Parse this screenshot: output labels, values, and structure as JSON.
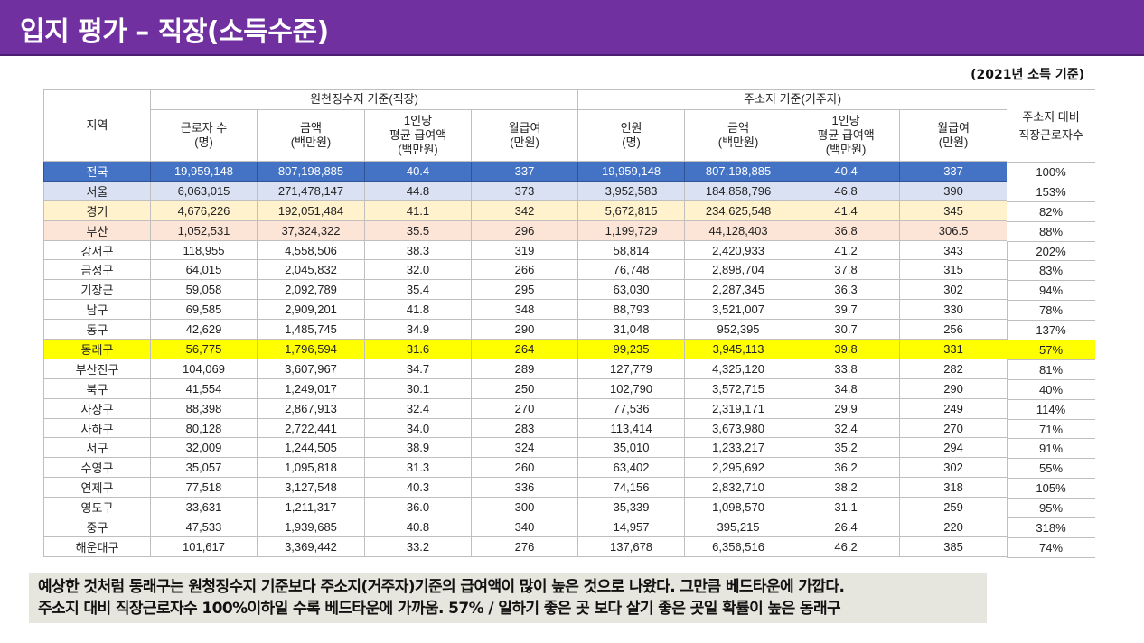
{
  "header": {
    "title": "입지 평가 – 직장(소득수준)"
  },
  "basis_note": "(2021년 소득 기준)",
  "table": {
    "region_header": "지역",
    "group_withholding": "원천징수지 기준(직장)",
    "group_residence": "주소지 기준(거주자)",
    "ratio_header": "주소지 대비\n직장근로자수",
    "withholding_columns": [
      "근로자 수\n(명)",
      "금액\n(백만원)",
      "1인당\n평균 급여액\n(백만원)",
      "월급여\n(만원)"
    ],
    "residence_columns": [
      "인원\n(명)",
      "금액\n(백만원)",
      "1인당\n평균 급여액\n(백만원)",
      "월급여\n(만원)"
    ],
    "rows": [
      {
        "style": "national",
        "region": "전국",
        "w_workers": "19,959,148",
        "w_amount": "807,198,885",
        "w_avg": "40.4",
        "w_month": "337",
        "r_people": "19,959,148",
        "r_amount": "807,198,885",
        "r_avg": "40.4",
        "r_month": "337",
        "ratio": "100%"
      },
      {
        "style": "seoul",
        "region": "서울",
        "w_workers": "6,063,015",
        "w_amount": "271,478,147",
        "w_avg": "44.8",
        "w_month": "373",
        "r_people": "3,952,583",
        "r_amount": "184,858,796",
        "r_avg": "46.8",
        "r_month": "390",
        "ratio": "153%"
      },
      {
        "style": "gyeonggi",
        "region": "경기",
        "w_workers": "4,676,226",
        "w_amount": "192,051,484",
        "w_avg": "41.1",
        "w_month": "342",
        "r_people": "5,672,815",
        "r_amount": "234,625,548",
        "r_avg": "41.4",
        "r_month": "345",
        "ratio": "82%"
      },
      {
        "style": "busan",
        "region": "부산",
        "w_workers": "1,052,531",
        "w_amount": "37,324,322",
        "w_avg": "35.5",
        "w_month": "296",
        "r_people": "1,199,729",
        "r_amount": "44,128,403",
        "r_avg": "36.8",
        "r_month": "306.5",
        "ratio": "88%"
      },
      {
        "style": "plain",
        "region": "강서구",
        "w_workers": "118,955",
        "w_amount": "4,558,506",
        "w_avg": "38.3",
        "w_month": "319",
        "r_people": "58,814",
        "r_amount": "2,420,933",
        "r_avg": "41.2",
        "r_month": "343",
        "ratio": "202%"
      },
      {
        "style": "plain",
        "region": "금정구",
        "w_workers": "64,015",
        "w_amount": "2,045,832",
        "w_avg": "32.0",
        "w_month": "266",
        "r_people": "76,748",
        "r_amount": "2,898,704",
        "r_avg": "37.8",
        "r_month": "315",
        "ratio": "83%"
      },
      {
        "style": "plain",
        "region": "기장군",
        "w_workers": "59,058",
        "w_amount": "2,092,789",
        "w_avg": "35.4",
        "w_month": "295",
        "r_people": "63,030",
        "r_amount": "2,287,345",
        "r_avg": "36.3",
        "r_month": "302",
        "ratio": "94%"
      },
      {
        "style": "plain",
        "region": "남구",
        "w_workers": "69,585",
        "w_amount": "2,909,201",
        "w_avg": "41.8",
        "w_month": "348",
        "r_people": "88,793",
        "r_amount": "3,521,007",
        "r_avg": "39.7",
        "r_month": "330",
        "ratio": "78%"
      },
      {
        "style": "plain",
        "region": "동구",
        "w_workers": "42,629",
        "w_amount": "1,485,745",
        "w_avg": "34.9",
        "w_month": "290",
        "r_people": "31,048",
        "r_amount": "952,395",
        "r_avg": "30.7",
        "r_month": "256",
        "ratio": "137%"
      },
      {
        "style": "highlight",
        "region": "동래구",
        "w_workers": "56,775",
        "w_amount": "1,796,594",
        "w_avg": "31.6",
        "w_month": "264",
        "r_people": "99,235",
        "r_amount": "3,945,113",
        "r_avg": "39.8",
        "r_month": "331",
        "ratio": "57%"
      },
      {
        "style": "plain",
        "region": "부산진구",
        "w_workers": "104,069",
        "w_amount": "3,607,967",
        "w_avg": "34.7",
        "w_month": "289",
        "r_people": "127,779",
        "r_amount": "4,325,120",
        "r_avg": "33.8",
        "r_month": "282",
        "ratio": "81%"
      },
      {
        "style": "plain",
        "region": "북구",
        "w_workers": "41,554",
        "w_amount": "1,249,017",
        "w_avg": "30.1",
        "w_month": "250",
        "r_people": "102,790",
        "r_amount": "3,572,715",
        "r_avg": "34.8",
        "r_month": "290",
        "ratio": "40%"
      },
      {
        "style": "plain",
        "region": "사상구",
        "w_workers": "88,398",
        "w_amount": "2,867,913",
        "w_avg": "32.4",
        "w_month": "270",
        "r_people": "77,536",
        "r_amount": "2,319,171",
        "r_avg": "29.9",
        "r_month": "249",
        "ratio": "114%"
      },
      {
        "style": "plain",
        "region": "사하구",
        "w_workers": "80,128",
        "w_amount": "2,722,441",
        "w_avg": "34.0",
        "w_month": "283",
        "r_people": "113,414",
        "r_amount": "3,673,980",
        "r_avg": "32.4",
        "r_month": "270",
        "ratio": "71%"
      },
      {
        "style": "plain",
        "region": "서구",
        "w_workers": "32,009",
        "w_amount": "1,244,505",
        "w_avg": "38.9",
        "w_month": "324",
        "r_people": "35,010",
        "r_amount": "1,233,217",
        "r_avg": "35.2",
        "r_month": "294",
        "ratio": "91%"
      },
      {
        "style": "plain",
        "region": "수영구",
        "w_workers": "35,057",
        "w_amount": "1,095,818",
        "w_avg": "31.3",
        "w_month": "260",
        "r_people": "63,402",
        "r_amount": "2,295,692",
        "r_avg": "36.2",
        "r_month": "302",
        "ratio": "55%"
      },
      {
        "style": "plain",
        "region": "연제구",
        "w_workers": "77,518",
        "w_amount": "3,127,548",
        "w_avg": "40.3",
        "w_month": "336",
        "r_people": "74,156",
        "r_amount": "2,832,710",
        "r_avg": "38.2",
        "r_month": "318",
        "ratio": "105%"
      },
      {
        "style": "plain",
        "region": "영도구",
        "w_workers": "33,631",
        "w_amount": "1,211,317",
        "w_avg": "36.0",
        "w_month": "300",
        "r_people": "35,339",
        "r_amount": "1,098,570",
        "r_avg": "31.1",
        "r_month": "259",
        "ratio": "95%"
      },
      {
        "style": "plain",
        "region": "중구",
        "w_workers": "47,533",
        "w_amount": "1,939,685",
        "w_avg": "40.8",
        "w_month": "340",
        "r_people": "14,957",
        "r_amount": "395,215",
        "r_avg": "26.4",
        "r_month": "220",
        "ratio": "318%"
      },
      {
        "style": "plain",
        "region": "해운대구",
        "w_workers": "101,617",
        "w_amount": "3,369,442",
        "w_avg": "33.2",
        "w_month": "276",
        "r_people": "137,678",
        "r_amount": "6,356,516",
        "r_avg": "46.2",
        "r_month": "385",
        "ratio": "74%"
      }
    ]
  },
  "conclusion": {
    "line1": "예상한 것처럼 동래구는 원청징수지 기준보다 주소지(거주자)기준의 급여액이 많이 높은 것으로 나왔다. 그만큼 베드타운에 가깝다.",
    "line2": "주소지 대비 직장근로자수 100%이하일 수록 베드타운에 가까움. 57% / 일하기 좋은 곳 보다 살기 좋은 곳일 확률이 높은 동래구"
  },
  "colors": {
    "header_bar": "#7030a0",
    "national_row": "#4472c4",
    "seoul_row": "#d9e1f2",
    "gyeonggi_row": "#fff2cc",
    "busan_row": "#fce4d6",
    "highlight_row": "#ffff00",
    "conclusion_box": "#e7e6de"
  }
}
